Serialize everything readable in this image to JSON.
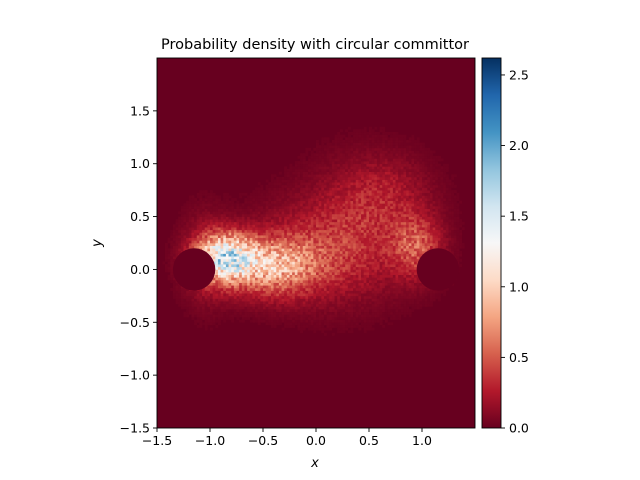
{
  "chart_data": {
    "type": "heatmap",
    "title": "Probability density with circular committor",
    "xlabel": "x",
    "ylabel": "y",
    "xlim": [
      -1.5,
      1.5
    ],
    "ylim": [
      -1.5,
      2.0
    ],
    "x_ticks": [
      -1.5,
      -1.0,
      -0.5,
      0.0,
      0.5,
      1.0
    ],
    "x_tick_labels": [
      "−1.5",
      "−1.0",
      "−0.5",
      "0.0",
      "0.5",
      "1.0"
    ],
    "y_ticks": [
      -1.5,
      -1.0,
      -0.5,
      0.0,
      0.5,
      1.0,
      1.5
    ],
    "y_tick_labels": [
      "−1.5",
      "−1.0",
      "−0.5",
      "0.0",
      "0.5",
      "1.0",
      "1.5"
    ],
    "colormap": "RdBu",
    "colorbar": {
      "range": [
        0.0,
        2.62
      ],
      "ticks": [
        0.0,
        0.5,
        1.0,
        1.5,
        2.0,
        2.5
      ],
      "tick_labels": [
        "0.0",
        "0.5",
        "1.0",
        "1.5",
        "2.0",
        "2.5"
      ]
    },
    "grid": false,
    "legend": "none",
    "excluded_disks": [
      {
        "center": [
          -1.15,
          0.0
        ],
        "radius": 0.2
      },
      {
        "center": [
          1.15,
          0.0
        ],
        "radius": 0.2
      }
    ],
    "density_shape": "noisy band connecting the two disks around y ≈ 0, spreading up to y ≈ 1.0 between x ≈ 0.2 and x ≈ 1.0, with peak density ≈ 2.1 near x ≈ -0.9, y ≈ 0.15",
    "colors": {
      "low": "#67001f",
      "mid": "#f7f7f7",
      "high": "#053061"
    }
  }
}
